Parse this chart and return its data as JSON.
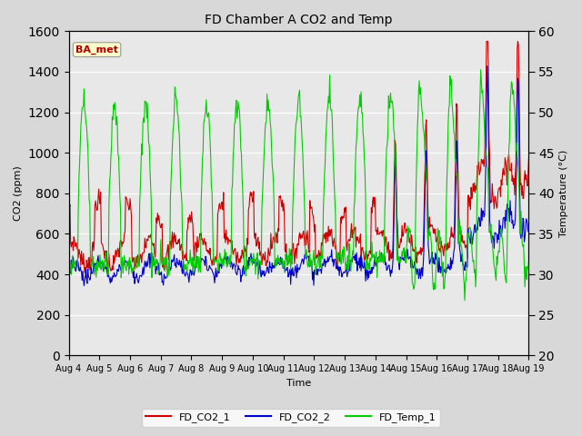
{
  "title": "FD Chamber A CO2 and Temp",
  "xlabel": "Time",
  "ylabel_left": "CO2 (ppm)",
  "ylabel_right": "Temperature (°C)",
  "ylim_left": [
    0,
    1600
  ],
  "ylim_right": [
    20,
    60
  ],
  "yticks_left": [
    0,
    200,
    400,
    600,
    800,
    1000,
    1200,
    1400,
    1600
  ],
  "yticks_right": [
    20,
    25,
    30,
    35,
    40,
    45,
    50,
    55,
    60
  ],
  "x_tick_labels": [
    "Aug 4",
    "Aug 5",
    "Aug 6",
    "Aug 7",
    "Aug 8",
    "Aug 9",
    "Aug 10",
    "Aug 11",
    "Aug 12",
    "Aug 13",
    "Aug 14",
    "Aug 15",
    "Aug 16",
    "Aug 17",
    "Aug 18",
    "Aug 19"
  ],
  "legend_labels": [
    "FD_CO2_1",
    "FD_CO2_2",
    "FD_Temp_1"
  ],
  "line_colors": [
    "#cc0000",
    "#0000cc",
    "#00cc00"
  ],
  "annotation_text": "BA_met",
  "annotation_color": "#aa0000",
  "annotation_bg": "#ffffcc",
  "background_color": "#d8d8d8",
  "plot_bg_color": "#e8e8e8",
  "grid_color": "#ffffff",
  "n_days": 15,
  "n_per_day": 48
}
